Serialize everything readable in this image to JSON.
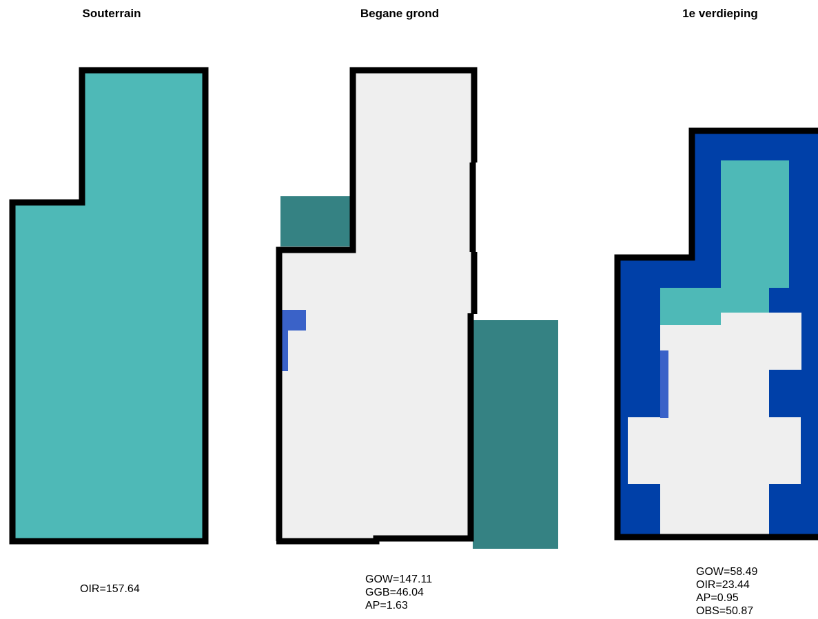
{
  "floors": [
    {
      "title": "Souterrain",
      "stats": [
        "OIR=157.64"
      ]
    },
    {
      "title": "Begane grond",
      "stats": [
        "GOW=147.11",
        "GGB=46.04",
        "AP=1.63"
      ]
    },
    {
      "title": "1e verdieping",
      "stats": [
        "GOW=58.49",
        "OIR=23.44",
        "AP=0.95",
        "OBS=50.87"
      ]
    }
  ],
  "colors": {
    "OIR": "#4eb9b7",
    "GOW": "#efefef",
    "AP": "#3a62c8",
    "OBS": "#0040a8",
    "outside": "#358283",
    "outline": "#000000"
  }
}
